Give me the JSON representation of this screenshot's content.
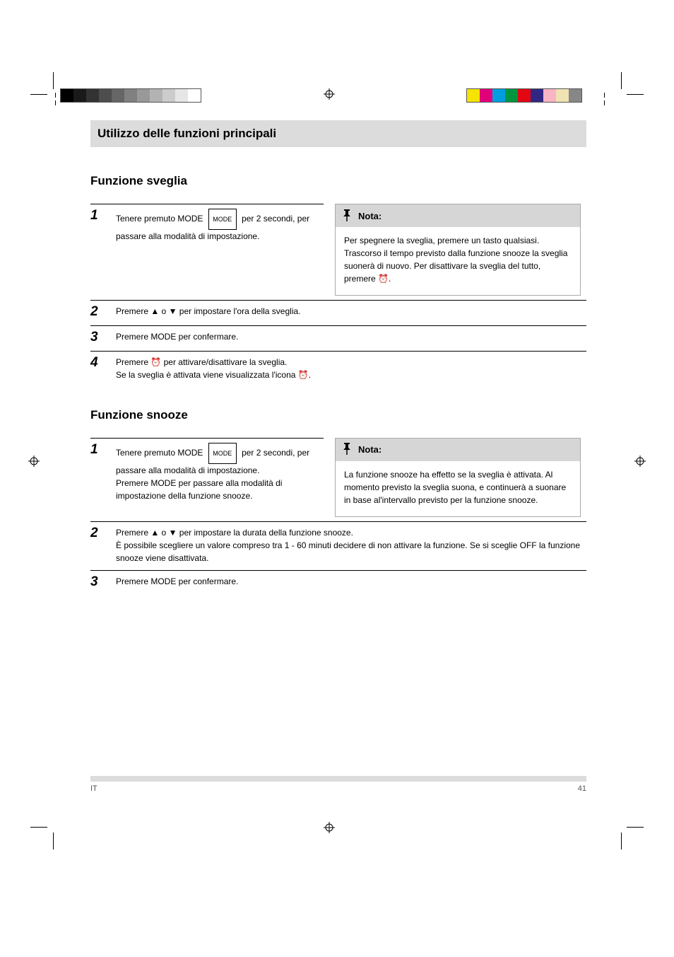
{
  "print_marks": {
    "gray_swatches": [
      "#000000",
      "#1a1a1a",
      "#333333",
      "#4d4d4d",
      "#666666",
      "#808080",
      "#999999",
      "#b3b3b3",
      "#cccccc",
      "#e6e6e6",
      "#ffffff"
    ],
    "color_swatches": [
      "#f5e400",
      "#e2007a",
      "#009ee0",
      "#009640",
      "#e30613",
      "#312783",
      "#f9b5c4",
      "#f1e2b3",
      "#878787"
    ]
  },
  "header": {
    "title": "Utilizzo delle funzioni principali"
  },
  "sec_sveglia": {
    "fn_label": "Funzione sveglia",
    "step1": {
      "num": "1",
      "text": "Tenere premuto MODE",
      "text2": "per 2 secondi, per passare alla modalità di impostazione."
    },
    "step2": {
      "num": "2",
      "text_html": "Premere ▲ o ▼ per impostare l'ora della sveglia."
    },
    "step3": {
      "num": "3",
      "text": "Premere MODE per confermare."
    },
    "step4": {
      "num": "4",
      "text_html": "Premere &#9200; per attivare/disattivare la sveglia.",
      "text_tail": " Se la sveglia è attivata viene visualizzata l'icona &#9200;."
    },
    "note_title": "Nota:",
    "note_body": "Per spegnere la sveglia, premere un tasto qualsiasi. Trascorso il tempo previsto dalla funzione snooze la sveglia suonerà di nuovo. Per disattivare la sveglia del tutto, premere &#9200;."
  },
  "sec_snooze": {
    "fn_label": "Funzione snooze",
    "step1": {
      "num": "1",
      "text": "Tenere premuto MODE",
      "text2": "per 2 secondi, per passare alla modalità di impostazione.",
      "text3": "Premere MODE per passare alla modalità di impostazione della funzione snooze."
    },
    "step2": {
      "num": "2",
      "text_html": "Premere ▲ o ▼ per impostare la durata della funzione snooze.",
      "sub": "È possibile scegliere un valore compreso tra 1 - 60 minuti decidere di non attivare la funzione. Se si sceglie OFF la funzione snooze viene disattivata."
    },
    "step3": {
      "num": "3",
      "text": "Premere MODE per confermare."
    },
    "note_title": "Nota:",
    "note_body": "La funzione snooze ha effetto se la sveglia è attivata. Al momento previsto la sveglia suona, e continuerà a suonare in base al'intervallo previsto per la funzione snooze."
  },
  "footer": {
    "page_label": "IT",
    "page_num": "41"
  }
}
